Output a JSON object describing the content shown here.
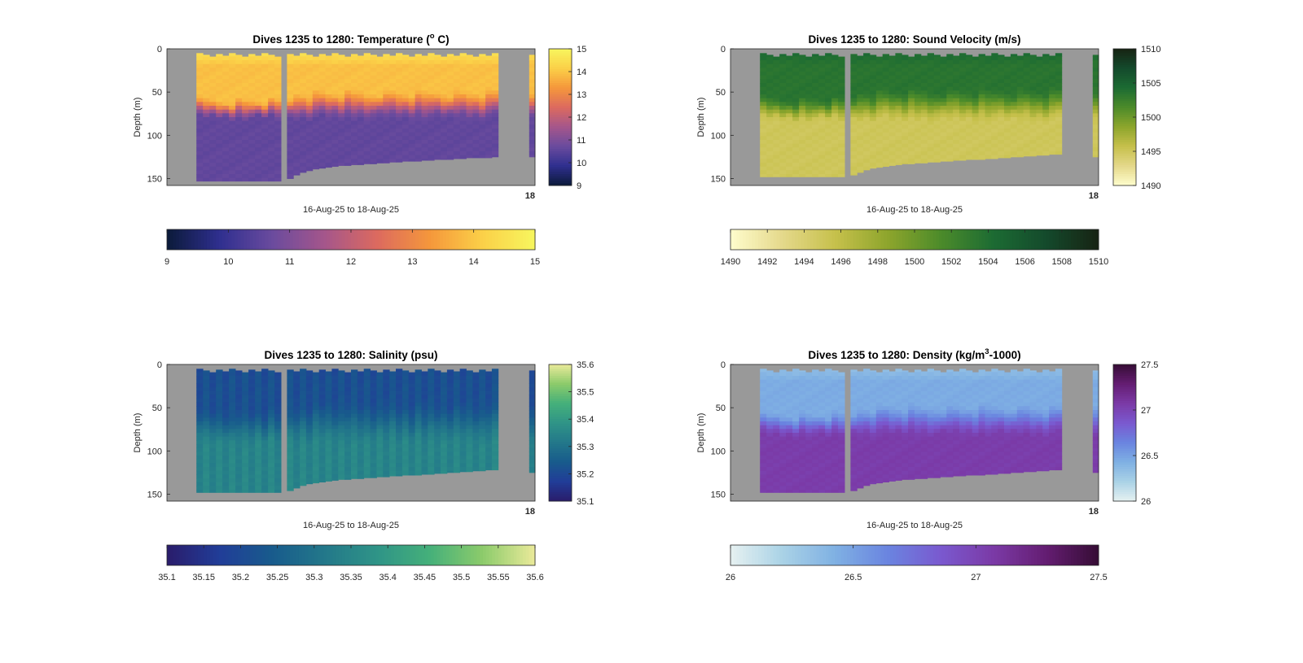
{
  "figure": {
    "background": "#ffffff",
    "no_data_color": "#999999"
  },
  "chart_data": [
    {
      "type": "heatmap",
      "variable": "temperature",
      "title": "Dives 1235 to 1280: Temperature (",
      "title_sup": "o",
      "title_tail": " C)",
      "xlabel": "16-Aug-25 to 18-Aug-25",
      "ylabel": "Depth (m)",
      "x_end_tick": "18",
      "ylim": [
        0,
        158
      ],
      "yticks": [
        "0",
        "50",
        "100",
        "150"
      ],
      "colormap": "thermal",
      "colormap_stops": [
        "#0b1a3a",
        "#2f2f8f",
        "#6a4b9e",
        "#a5568b",
        "#dc6a5f",
        "#f5973b",
        "#fbd048",
        "#f7f65e"
      ],
      "clim": [
        9,
        15
      ],
      "vbar_ticks": [
        "9",
        "10",
        "11",
        "12",
        "13",
        "14",
        "15"
      ],
      "hbar_ticks": [
        "9",
        "10",
        "11",
        "12",
        "13",
        "14",
        "15"
      ],
      "profile": {
        "surface": 14.7,
        "mixed": 13.9,
        "deep": 10.6,
        "thermocline_top": 52,
        "thermocline_bottom": 82
      },
      "section_bottom_depths": [
        153,
        153,
        153,
        153,
        153,
        153,
        153,
        153,
        153,
        153,
        153,
        153,
        153,
        150,
        146,
        143,
        141,
        139,
        138,
        137,
        136,
        135,
        135,
        134,
        134,
        133,
        133,
        132,
        132,
        131,
        131,
        130,
        130,
        130,
        129,
        129,
        128,
        128,
        128,
        127,
        127,
        126,
        126,
        126,
        126,
        125
      ]
    },
    {
      "type": "heatmap",
      "variable": "sound_velocity",
      "title": "Dives 1235 to 1280: Sound Velocity (m/s)",
      "title_sup": "",
      "title_tail": "",
      "xlabel": "16-Aug-25 to 18-Aug-25",
      "ylabel": "Depth (m)",
      "x_end_tick": "18",
      "ylim": [
        0,
        158
      ],
      "yticks": [
        "0",
        "50",
        "100",
        "150"
      ],
      "colormap": "speed",
      "colormap_stops": [
        "#fffdcd",
        "#e4d88a",
        "#c6c04b",
        "#8da52c",
        "#4c8b2a",
        "#1c6b33",
        "#144a2c",
        "#172313"
      ],
      "clim": [
        1490,
        1510
      ],
      "vbar_ticks": [
        "1490",
        "1495",
        "1500",
        "1505",
        "1510"
      ],
      "hbar_ticks": [
        "1490",
        "1492",
        "1494",
        "1496",
        "1498",
        "1500",
        "1502",
        "1504",
        "1506",
        "1508",
        "1510"
      ],
      "profile": {
        "surface": 1504.5,
        "mixed": 1503.5,
        "deep": 1495.0,
        "thermocline_top": 50,
        "thermocline_bottom": 85
      },
      "section_bottom_depths": [
        148,
        148,
        148,
        148,
        148,
        148,
        148,
        148,
        148,
        148,
        148,
        148,
        148,
        146,
        143,
        140,
        138,
        137,
        136,
        135,
        134,
        133,
        133,
        132,
        132,
        131,
        131,
        130,
        130,
        129,
        129,
        128,
        128,
        128,
        127,
        127,
        126,
        126,
        125,
        125,
        124,
        124,
        123,
        123,
        122,
        122
      ]
    },
    {
      "type": "heatmap",
      "variable": "salinity",
      "title": "Dives 1235 to 1280: Salinity (psu)",
      "title_sup": "",
      "title_tail": "",
      "xlabel": "16-Aug-25 to 18-Aug-25",
      "ylabel": "Depth (m)",
      "x_end_tick": "18",
      "ylim": [
        0,
        158
      ],
      "yticks": [
        "0",
        "50",
        "100",
        "150"
      ],
      "colormap": "haline",
      "colormap_stops": [
        "#2a1c6b",
        "#213d98",
        "#185b8c",
        "#23788a",
        "#2f9487",
        "#45b07a",
        "#8ccb6b",
        "#eaea9a"
      ],
      "clim": [
        35.1,
        35.6
      ],
      "vbar_ticks": [
        "35.1",
        "35.2",
        "35.3",
        "35.4",
        "35.5",
        "35.6"
      ],
      "hbar_ticks": [
        "35.1",
        "35.15",
        "35.2",
        "35.25",
        "35.3",
        "35.35",
        "35.4",
        "35.45",
        "35.5",
        "35.55",
        "35.6"
      ],
      "profile": {
        "surface": 35.2,
        "mixed": 35.21,
        "deep": 35.34,
        "thermocline_top": 45,
        "thermocline_bottom": 95
      },
      "section_bottom_depths": [
        148,
        148,
        148,
        148,
        148,
        148,
        148,
        148,
        148,
        148,
        148,
        148,
        148,
        146,
        143,
        140,
        138,
        137,
        136,
        135,
        134,
        133,
        133,
        132,
        132,
        131,
        131,
        130,
        130,
        129,
        129,
        128,
        128,
        128,
        127,
        127,
        126,
        126,
        125,
        125,
        124,
        124,
        123,
        123,
        122,
        122
      ]
    },
    {
      "type": "heatmap",
      "variable": "density",
      "title": "Dives 1235 to 1280: Density (kg/m",
      "title_sup": "3",
      "title_tail": "-1000)",
      "xlabel": "16-Aug-25 to 18-Aug-25",
      "ylabel": "Depth (m)",
      "x_end_tick": "18",
      "ylim": [
        0,
        158
      ],
      "yticks": [
        "0",
        "50",
        "100",
        "150"
      ],
      "colormap": "dense",
      "colormap_stops": [
        "#e6f1f1",
        "#a9d2e6",
        "#7fb0e3",
        "#6a84e0",
        "#7a59cf",
        "#7b3aa6",
        "#641d72",
        "#360d35"
      ],
      "clim": [
        26,
        27.5
      ],
      "vbar_ticks": [
        "26",
        "26.5",
        "27",
        "27.5"
      ],
      "hbar_ticks": [
        "26",
        "26.5",
        "27",
        "27.5"
      ],
      "profile": {
        "surface": 26.3,
        "mixed": 26.45,
        "deep": 27.05,
        "thermocline_top": 50,
        "thermocline_bottom": 85
      },
      "section_bottom_depths": [
        148,
        148,
        148,
        148,
        148,
        148,
        148,
        148,
        148,
        148,
        148,
        148,
        148,
        146,
        143,
        140,
        138,
        137,
        136,
        135,
        134,
        133,
        133,
        132,
        132,
        131,
        131,
        130,
        130,
        129,
        129,
        128,
        128,
        128,
        127,
        127,
        126,
        126,
        125,
        125,
        124,
        124,
        123,
        123,
        122,
        122
      ]
    }
  ]
}
